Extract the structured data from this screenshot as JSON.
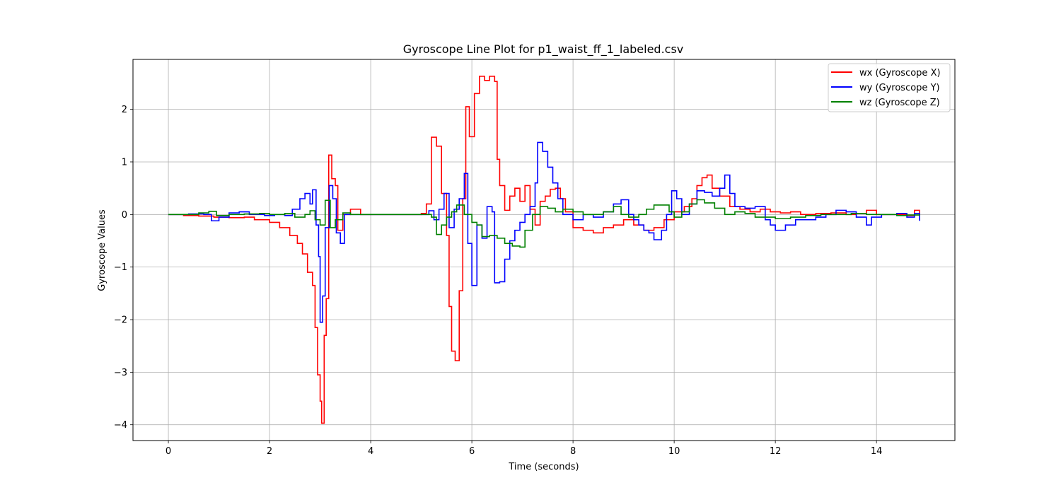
{
  "chart_data": {
    "type": "line",
    "title": "Gyroscope Line Plot for p1_waist_ff_1_labeled.csv",
    "xlabel": "Time (seconds)",
    "ylabel": "Gyroscope Values",
    "xlim": [
      -0.7,
      15.55
    ],
    "ylim": [
      -4.3,
      2.95
    ],
    "x_ticks": [
      0,
      2,
      4,
      6,
      8,
      10,
      12,
      14
    ],
    "x_tick_labels": [
      "0",
      "2",
      "4",
      "6",
      "8",
      "10",
      "12",
      "14"
    ],
    "y_ticks": [
      -4,
      -3,
      -2,
      -1,
      0,
      1,
      2
    ],
    "y_tick_labels": [
      "−4",
      "−3",
      "−2",
      "−1",
      "0",
      "1",
      "2"
    ],
    "grid": true,
    "legend_position": "top-right",
    "step": true,
    "series": [
      {
        "name": "wx (Gyroscope X)",
        "color": "#ff0000",
        "points": [
          [
            0.0,
            0.0
          ],
          [
            0.3,
            -0.02
          ],
          [
            0.6,
            -0.03
          ],
          [
            0.9,
            -0.05
          ],
          [
            1.2,
            -0.06
          ],
          [
            1.5,
            -0.05
          ],
          [
            1.7,
            -0.1
          ],
          [
            2.0,
            -0.15
          ],
          [
            2.2,
            -0.25
          ],
          [
            2.4,
            -0.4
          ],
          [
            2.55,
            -0.55
          ],
          [
            2.65,
            -0.75
          ],
          [
            2.75,
            -1.1
          ],
          [
            2.85,
            -1.35
          ],
          [
            2.9,
            -2.15
          ],
          [
            2.95,
            -3.05
          ],
          [
            3.0,
            -3.55
          ],
          [
            3.03,
            -3.97
          ],
          [
            3.08,
            -2.3
          ],
          [
            3.12,
            -1.6
          ],
          [
            3.17,
            1.13
          ],
          [
            3.23,
            0.68
          ],
          [
            3.3,
            0.55
          ],
          [
            3.35,
            -0.3
          ],
          [
            3.45,
            0.0
          ],
          [
            3.6,
            0.1
          ],
          [
            3.8,
            0.0
          ],
          [
            4.5,
            0.0
          ],
          [
            5.0,
            0.02
          ],
          [
            5.1,
            0.2
          ],
          [
            5.2,
            1.47
          ],
          [
            5.3,
            1.3
          ],
          [
            5.4,
            0.4
          ],
          [
            5.5,
            -0.4
          ],
          [
            5.55,
            -1.75
          ],
          [
            5.6,
            -2.6
          ],
          [
            5.67,
            -2.78
          ],
          [
            5.75,
            -1.45
          ],
          [
            5.82,
            0.3
          ],
          [
            5.88,
            2.05
          ],
          [
            5.95,
            1.48
          ],
          [
            6.05,
            2.3
          ],
          [
            6.15,
            2.63
          ],
          [
            6.25,
            2.55
          ],
          [
            6.35,
            2.63
          ],
          [
            6.45,
            2.53
          ],
          [
            6.5,
            1.05
          ],
          [
            6.55,
            0.55
          ],
          [
            6.65,
            0.08
          ],
          [
            6.75,
            0.35
          ],
          [
            6.85,
            0.5
          ],
          [
            6.95,
            0.25
          ],
          [
            7.05,
            0.55
          ],
          [
            7.15,
            0.1
          ],
          [
            7.25,
            -0.2
          ],
          [
            7.35,
            0.25
          ],
          [
            7.45,
            0.35
          ],
          [
            7.55,
            0.48
          ],
          [
            7.65,
            0.5
          ],
          [
            7.75,
            0.3
          ],
          [
            7.85,
            0.05
          ],
          [
            8.0,
            -0.25
          ],
          [
            8.2,
            -0.3
          ],
          [
            8.4,
            -0.35
          ],
          [
            8.6,
            -0.25
          ],
          [
            8.8,
            -0.2
          ],
          [
            9.0,
            -0.1
          ],
          [
            9.2,
            -0.2
          ],
          [
            9.4,
            -0.3
          ],
          [
            9.6,
            -0.25
          ],
          [
            9.8,
            -0.1
          ],
          [
            10.0,
            0.05
          ],
          [
            10.2,
            0.15
          ],
          [
            10.35,
            0.3
          ],
          [
            10.45,
            0.55
          ],
          [
            10.55,
            0.7
          ],
          [
            10.65,
            0.75
          ],
          [
            10.75,
            0.5
          ],
          [
            10.9,
            0.35
          ],
          [
            11.1,
            0.15
          ],
          [
            11.3,
            0.1
          ],
          [
            11.5,
            0.05
          ],
          [
            11.7,
            0.1
          ],
          [
            11.9,
            0.05
          ],
          [
            12.1,
            0.03
          ],
          [
            12.3,
            0.05
          ],
          [
            12.5,
            0.0
          ],
          [
            12.8,
            0.02
          ],
          [
            13.1,
            0.03
          ],
          [
            13.4,
            0.0
          ],
          [
            13.6,
            0.02
          ],
          [
            13.8,
            0.08
          ],
          [
            14.0,
            0.0
          ],
          [
            14.3,
            0.0
          ],
          [
            14.6,
            -0.02
          ],
          [
            14.75,
            0.08
          ],
          [
            14.85,
            -0.02
          ]
        ]
      },
      {
        "name": "wy (Gyroscope Y)",
        "color": "#0000ff",
        "points": [
          [
            0.0,
            0.0
          ],
          [
            0.4,
            0.01
          ],
          [
            0.7,
            0.0
          ],
          [
            0.85,
            -0.12
          ],
          [
            1.0,
            -0.05
          ],
          [
            1.2,
            0.03
          ],
          [
            1.4,
            0.05
          ],
          [
            1.6,
            0.0
          ],
          [
            1.9,
            -0.02
          ],
          [
            2.1,
            0.0
          ],
          [
            2.3,
            -0.02
          ],
          [
            2.45,
            0.1
          ],
          [
            2.6,
            0.3
          ],
          [
            2.7,
            0.4
          ],
          [
            2.8,
            0.2
          ],
          [
            2.85,
            0.47
          ],
          [
            2.92,
            -0.2
          ],
          [
            2.97,
            -0.8
          ],
          [
            3.0,
            -2.05
          ],
          [
            3.05,
            -1.55
          ],
          [
            3.1,
            -0.25
          ],
          [
            3.18,
            0.55
          ],
          [
            3.25,
            0.3
          ],
          [
            3.32,
            -0.35
          ],
          [
            3.4,
            -0.55
          ],
          [
            3.48,
            0.0
          ],
          [
            3.6,
            0.0
          ],
          [
            4.0,
            0.0
          ],
          [
            5.0,
            0.0
          ],
          [
            5.15,
            0.07
          ],
          [
            5.25,
            -0.1
          ],
          [
            5.35,
            0.1
          ],
          [
            5.45,
            0.4
          ],
          [
            5.55,
            -0.25
          ],
          [
            5.65,
            0.1
          ],
          [
            5.75,
            0.3
          ],
          [
            5.85,
            0.78
          ],
          [
            5.92,
            -0.55
          ],
          [
            6.0,
            -1.35
          ],
          [
            6.1,
            -0.2
          ],
          [
            6.2,
            -0.45
          ],
          [
            6.3,
            0.15
          ],
          [
            6.4,
            0.05
          ],
          [
            6.45,
            -1.3
          ],
          [
            6.55,
            -1.28
          ],
          [
            6.65,
            -0.85
          ],
          [
            6.75,
            -0.5
          ],
          [
            6.85,
            -0.3
          ],
          [
            6.95,
            -0.15
          ],
          [
            7.05,
            0.0
          ],
          [
            7.15,
            0.15
          ],
          [
            7.25,
            0.6
          ],
          [
            7.3,
            1.37
          ],
          [
            7.4,
            1.2
          ],
          [
            7.5,
            0.9
          ],
          [
            7.6,
            0.6
          ],
          [
            7.7,
            0.3
          ],
          [
            7.8,
            0.0
          ],
          [
            8.0,
            -0.1
          ],
          [
            8.2,
            0.0
          ],
          [
            8.4,
            -0.05
          ],
          [
            8.6,
            0.05
          ],
          [
            8.8,
            0.2
          ],
          [
            8.95,
            0.28
          ],
          [
            9.1,
            0.0
          ],
          [
            9.2,
            -0.1
          ],
          [
            9.3,
            -0.2
          ],
          [
            9.4,
            -0.3
          ],
          [
            9.5,
            -0.35
          ],
          [
            9.6,
            -0.48
          ],
          [
            9.75,
            -0.3
          ],
          [
            9.85,
            0.0
          ],
          [
            9.95,
            0.45
          ],
          [
            10.05,
            0.3
          ],
          [
            10.15,
            0.0
          ],
          [
            10.3,
            0.2
          ],
          [
            10.45,
            0.45
          ],
          [
            10.6,
            0.42
          ],
          [
            10.75,
            0.35
          ],
          [
            10.9,
            0.5
          ],
          [
            11.0,
            0.75
          ],
          [
            11.1,
            0.4
          ],
          [
            11.2,
            0.15
          ],
          [
            11.4,
            0.12
          ],
          [
            11.6,
            0.15
          ],
          [
            11.8,
            -0.1
          ],
          [
            11.9,
            -0.2
          ],
          [
            12.0,
            -0.3
          ],
          [
            12.2,
            -0.2
          ],
          [
            12.4,
            -0.1
          ],
          [
            12.6,
            -0.1
          ],
          [
            12.8,
            -0.05
          ],
          [
            13.0,
            0.0
          ],
          [
            13.2,
            0.08
          ],
          [
            13.4,
            0.05
          ],
          [
            13.6,
            -0.05
          ],
          [
            13.8,
            -0.2
          ],
          [
            13.9,
            -0.05
          ],
          [
            14.1,
            0.0
          ],
          [
            14.4,
            0.02
          ],
          [
            14.6,
            -0.05
          ],
          [
            14.75,
            0.02
          ],
          [
            14.85,
            -0.12
          ]
        ]
      },
      {
        "name": "wz (Gyroscope Z)",
        "color": "#008000",
        "points": [
          [
            0.0,
            0.0
          ],
          [
            0.3,
            0.0
          ],
          [
            0.6,
            0.03
          ],
          [
            0.8,
            0.06
          ],
          [
            0.95,
            -0.02
          ],
          [
            1.2,
            0.0
          ],
          [
            1.5,
            0.01
          ],
          [
            1.8,
            0.02
          ],
          [
            2.0,
            0.0
          ],
          [
            2.3,
            0.02
          ],
          [
            2.5,
            -0.05
          ],
          [
            2.7,
            0.0
          ],
          [
            2.8,
            0.07
          ],
          [
            2.9,
            -0.1
          ],
          [
            3.0,
            -0.2
          ],
          [
            3.1,
            0.27
          ],
          [
            3.2,
            -0.25
          ],
          [
            3.3,
            -0.1
          ],
          [
            3.45,
            0.03
          ],
          [
            3.6,
            0.0
          ],
          [
            4.0,
            0.0
          ],
          [
            5.0,
            0.0
          ],
          [
            5.2,
            -0.05
          ],
          [
            5.3,
            -0.38
          ],
          [
            5.4,
            -0.2
          ],
          [
            5.5,
            -0.05
          ],
          [
            5.6,
            0.05
          ],
          [
            5.7,
            0.18
          ],
          [
            5.85,
            0.0
          ],
          [
            6.0,
            -0.15
          ],
          [
            6.1,
            -0.2
          ],
          [
            6.2,
            -0.42
          ],
          [
            6.35,
            -0.4
          ],
          [
            6.5,
            -0.45
          ],
          [
            6.65,
            -0.55
          ],
          [
            6.8,
            -0.6
          ],
          [
            6.95,
            -0.62
          ],
          [
            7.05,
            -0.3
          ],
          [
            7.2,
            0.0
          ],
          [
            7.35,
            0.15
          ],
          [
            7.5,
            0.12
          ],
          [
            7.65,
            0.05
          ],
          [
            7.8,
            0.1
          ],
          [
            8.0,
            0.05
          ],
          [
            8.2,
            0.0
          ],
          [
            8.4,
            0.0
          ],
          [
            8.6,
            0.05
          ],
          [
            8.8,
            0.15
          ],
          [
            8.95,
            0.0
          ],
          [
            9.1,
            -0.05
          ],
          [
            9.3,
            0.0
          ],
          [
            9.45,
            0.1
          ],
          [
            9.6,
            0.18
          ],
          [
            9.75,
            0.18
          ],
          [
            9.9,
            0.05
          ],
          [
            10.0,
            -0.05
          ],
          [
            10.15,
            0.05
          ],
          [
            10.3,
            0.2
          ],
          [
            10.45,
            0.28
          ],
          [
            10.6,
            0.22
          ],
          [
            10.8,
            0.12
          ],
          [
            11.0,
            0.0
          ],
          [
            11.2,
            0.05
          ],
          [
            11.4,
            0.02
          ],
          [
            11.6,
            -0.05
          ],
          [
            11.8,
            -0.05
          ],
          [
            12.0,
            -0.08
          ],
          [
            12.3,
            -0.05
          ],
          [
            12.6,
            -0.02
          ],
          [
            12.9,
            0.0
          ],
          [
            13.2,
            0.0
          ],
          [
            13.5,
            0.02
          ],
          [
            13.8,
            0.0
          ],
          [
            14.1,
            0.0
          ],
          [
            14.4,
            -0.02
          ],
          [
            14.6,
            -0.01
          ],
          [
            14.85,
            -0.02
          ]
        ]
      }
    ]
  }
}
